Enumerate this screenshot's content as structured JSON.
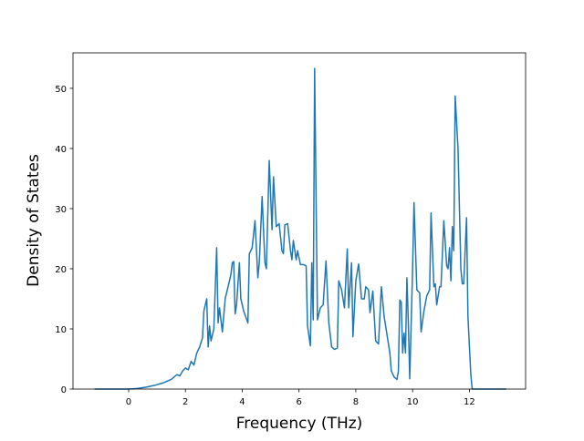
{
  "chart_data": {
    "type": "line",
    "xlabel": "Frequency (THz)",
    "ylabel": "Density of States",
    "color": "#1f77b4",
    "x": [
      -1.2,
      -0.5,
      0,
      0.3,
      0.6,
      0.9,
      1.2,
      1.5,
      1.7,
      1.8,
      1.9,
      2.0,
      2.1,
      2.2,
      2.3,
      2.4,
      2.5,
      2.6,
      2.65,
      2.75,
      2.8,
      2.85,
      2.9,
      3.0,
      3.1,
      3.15,
      3.2,
      3.3,
      3.4,
      3.5,
      3.6,
      3.65,
      3.7,
      3.75,
      3.8,
      3.9,
      3.95,
      4.05,
      4.2,
      4.25,
      4.35,
      4.45,
      4.55,
      4.6,
      4.7,
      4.8,
      4.85,
      4.95,
      5.05,
      5.1,
      5.2,
      5.3,
      5.4,
      5.45,
      5.5,
      5.6,
      5.7,
      5.75,
      5.8,
      5.9,
      5.95,
      6.05,
      6.15,
      6.25,
      6.3,
      6.4,
      6.45,
      6.5,
      6.55,
      6.65,
      6.75,
      6.85,
      6.95,
      7.05,
      7.15,
      7.25,
      7.35,
      7.4,
      7.5,
      7.6,
      7.7,
      7.75,
      7.85,
      7.9,
      8.0,
      8.1,
      8.2,
      8.3,
      8.35,
      8.45,
      8.5,
      8.6,
      8.7,
      8.8,
      8.9,
      9.0,
      9.1,
      9.2,
      9.25,
      9.35,
      9.45,
      9.5,
      9.55,
      9.6,
      9.65,
      9.7,
      9.75,
      9.8,
      9.85,
      9.9,
      10.0,
      10.05,
      10.15,
      10.25,
      10.3,
      10.4,
      10.5,
      10.6,
      10.65,
      10.75,
      10.8,
      10.85,
      10.95,
      11.0,
      11.1,
      11.2,
      11.25,
      11.3,
      11.35,
      11.4,
      11.45,
      11.5,
      11.6,
      11.7,
      11.75,
      11.8,
      11.9,
      11.95,
      12.05,
      12.1,
      12.5,
      13.3
    ],
    "values": [
      0,
      0,
      0,
      0.1,
      0.3,
      0.6,
      1.0,
      1.6,
      2.4,
      2.2,
      3.0,
      3.5,
      3.2,
      4.6,
      4.0,
      6.0,
      7.0,
      8.5,
      13,
      15,
      7,
      10.5,
      8,
      10,
      23.5,
      11,
      13.5,
      9.5,
      15,
      17,
      19,
      21,
      21.2,
      12.5,
      14,
      21,
      15,
      13,
      11,
      22.5,
      23.5,
      28,
      18.5,
      21,
      32,
      21,
      20,
      38,
      26.5,
      35.3,
      27,
      27.5,
      23,
      22.5,
      27.3,
      27.5,
      23,
      21.5,
      24.7,
      21.5,
      23,
      20.7,
      20.7,
      20.5,
      10.5,
      7.2,
      21,
      11.5,
      53.3,
      11.5,
      13.5,
      14,
      21.3,
      11,
      7,
      6.6,
      6.8,
      18,
      16.5,
      13.5,
      23.3,
      13.5,
      21,
      8.7,
      18,
      20.8,
      15,
      15,
      17,
      16.5,
      12.7,
      16.3,
      8,
      7.5,
      17,
      12,
      9,
      6,
      3,
      2,
      1.6,
      3,
      14.8,
      14.5,
      6,
      9.3,
      6,
      18.5,
      11,
      1.7,
      20,
      31,
      16.5,
      16,
      9.5,
      13,
      15.5,
      16.5,
      29.3,
      17,
      17.5,
      14,
      17,
      17,
      28,
      20.5,
      20,
      23.5,
      18,
      27,
      23,
      48.7,
      40,
      20,
      17.5,
      17.5,
      28.5,
      12,
      2.5,
      0,
      0,
      0
    ],
    "xlim": [
      -1.96,
      13.98
    ],
    "xticks": [
      0,
      2,
      4,
      6,
      8,
      10,
      12
    ],
    "ylim": [
      0,
      55.9
    ],
    "yticks": [
      0,
      10,
      20,
      30,
      40,
      50
    ]
  }
}
